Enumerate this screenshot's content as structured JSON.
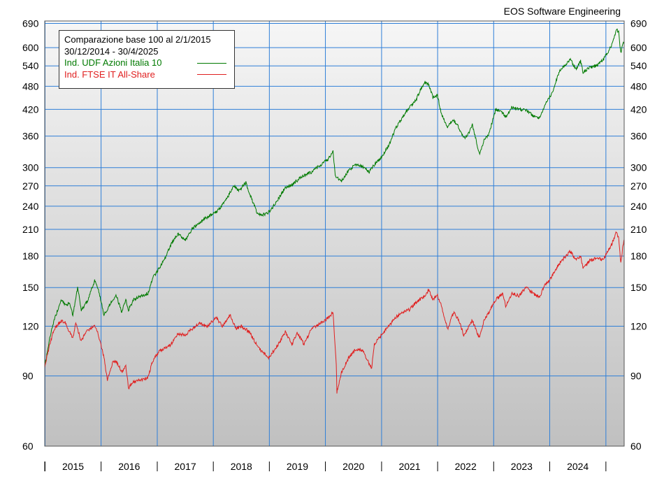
{
  "credit": "EOS Software Engineering",
  "chart_data": {
    "type": "line",
    "title": "Comparazione base 100 al 2/1/2015",
    "subtitle": "30/12/2014 - 30/4/2025",
    "y_scale": "log",
    "ylim": [
      60,
      700
    ],
    "xlim": [
      "2014-12-30",
      "2025-04-30"
    ],
    "y_ticks": [
      60,
      90,
      120,
      150,
      180,
      210,
      240,
      270,
      300,
      360,
      420,
      480,
      540,
      600,
      690
    ],
    "x_tick_labels": [
      "2015",
      "2016",
      "2017",
      "2018",
      "2019",
      "2020",
      "2021",
      "2022",
      "2023",
      "2024"
    ],
    "grid": true,
    "legend_position": "top-left",
    "colors": {
      "background_top": "#f6f6f6",
      "background_bottom": "#c0c0c0",
      "grid": "#2f7fd8"
    },
    "series": [
      {
        "name": "Ind. UDF Azioni Italia 10",
        "color": "#007a00",
        "points": [
          [
            "2014-12-30",
            95
          ],
          [
            "2015-02-01",
            112
          ],
          [
            "2015-03-01",
            124
          ],
          [
            "2015-04-15",
            140
          ],
          [
            "2015-05-15",
            135
          ],
          [
            "2015-06-10",
            138
          ],
          [
            "2015-07-01",
            128
          ],
          [
            "2015-08-01",
            150
          ],
          [
            "2015-08-25",
            132
          ],
          [
            "2015-10-01",
            138
          ],
          [
            "2015-11-20",
            156
          ],
          [
            "2015-12-15",
            148
          ],
          [
            "2016-01-20",
            128
          ],
          [
            "2016-02-15",
            133
          ],
          [
            "2016-03-15",
            140
          ],
          [
            "2016-04-10",
            143
          ],
          [
            "2016-05-15",
            130
          ],
          [
            "2016-06-10",
            140
          ],
          [
            "2016-06-28",
            132
          ],
          [
            "2016-08-01",
            140
          ],
          [
            "2016-09-15",
            143
          ],
          [
            "2016-11-01",
            145
          ],
          [
            "2016-12-01",
            158
          ],
          [
            "2017-01-15",
            168
          ],
          [
            "2017-03-01",
            180
          ],
          [
            "2017-04-01",
            193
          ],
          [
            "2017-05-15",
            205
          ],
          [
            "2017-07-01",
            197
          ],
          [
            "2017-08-15",
            210
          ],
          [
            "2017-10-01",
            218
          ],
          [
            "2017-11-20",
            225
          ],
          [
            "2018-01-20",
            232
          ],
          [
            "2018-03-15",
            245
          ],
          [
            "2018-05-15",
            270
          ],
          [
            "2018-06-15",
            262
          ],
          [
            "2018-08-01",
            275
          ],
          [
            "2018-08-25",
            258
          ],
          [
            "2018-10-20",
            228
          ],
          [
            "2018-12-20",
            230
          ],
          [
            "2019-02-15",
            245
          ],
          [
            "2019-04-15",
            268
          ],
          [
            "2019-06-01",
            272
          ],
          [
            "2019-08-01",
            285
          ],
          [
            "2019-10-01",
            292
          ],
          [
            "2019-12-01",
            305
          ],
          [
            "2020-01-20",
            315
          ],
          [
            "2020-02-20",
            330
          ],
          [
            "2020-03-05",
            285
          ],
          [
            "2020-04-15",
            278
          ],
          [
            "2020-06-01",
            295
          ],
          [
            "2020-07-15",
            305
          ],
          [
            "2020-09-01",
            302
          ],
          [
            "2020-10-10",
            292
          ],
          [
            "2020-11-15",
            305
          ],
          [
            "2020-12-31",
            318
          ],
          [
            "2021-02-15",
            340
          ],
          [
            "2021-04-01",
            375
          ],
          [
            "2021-05-15",
            400
          ],
          [
            "2021-07-01",
            425
          ],
          [
            "2021-08-15",
            445
          ],
          [
            "2021-09-10",
            470
          ],
          [
            "2021-10-10",
            490
          ],
          [
            "2021-11-05",
            485
          ],
          [
            "2021-12-01",
            450
          ],
          [
            "2021-12-31",
            455
          ],
          [
            "2022-01-25",
            410
          ],
          [
            "2022-03-07",
            380
          ],
          [
            "2022-04-15",
            395
          ],
          [
            "2022-05-20",
            378
          ],
          [
            "2022-06-20",
            355
          ],
          [
            "2022-07-15",
            360
          ],
          [
            "2022-08-15",
            385
          ],
          [
            "2022-09-29",
            325
          ],
          [
            "2022-10-30",
            350
          ],
          [
            "2022-12-01",
            365
          ],
          [
            "2023-01-15",
            420
          ],
          [
            "2023-03-01",
            412
          ],
          [
            "2023-03-20",
            402
          ],
          [
            "2023-05-01",
            425
          ],
          [
            "2023-06-15",
            420
          ],
          [
            "2023-08-01",
            418
          ],
          [
            "2023-09-15",
            405
          ],
          [
            "2023-10-27",
            400
          ],
          [
            "2023-12-01",
            430
          ],
          [
            "2024-01-15",
            460
          ],
          [
            "2024-03-01",
            520
          ],
          [
            "2024-04-15",
            545
          ],
          [
            "2024-05-15",
            560
          ],
          [
            "2024-06-20",
            530
          ],
          [
            "2024-07-20",
            555
          ],
          [
            "2024-08-05",
            520
          ],
          [
            "2024-09-15",
            535
          ],
          [
            "2024-11-01",
            540
          ],
          [
            "2024-12-15",
            560
          ],
          [
            "2025-01-31",
            600
          ],
          [
            "2025-02-25",
            640
          ],
          [
            "2025-03-10",
            668
          ],
          [
            "2025-03-25",
            655
          ],
          [
            "2025-04-08",
            580
          ],
          [
            "2025-04-20",
            612
          ],
          [
            "2025-04-30",
            622
          ]
        ]
      },
      {
        "name": "Ind. FTSE IT All-Share",
        "color": "#e02020",
        "points": [
          [
            "2014-12-30",
            95
          ],
          [
            "2015-02-01",
            108
          ],
          [
            "2015-03-01",
            118
          ],
          [
            "2015-04-15",
            124
          ],
          [
            "2015-05-15",
            122
          ],
          [
            "2015-06-10",
            116
          ],
          [
            "2015-07-01",
            112
          ],
          [
            "2015-07-20",
            122
          ],
          [
            "2015-08-25",
            110
          ],
          [
            "2015-10-01",
            117
          ],
          [
            "2015-11-20",
            120
          ],
          [
            "2015-12-15",
            114
          ],
          [
            "2016-01-20",
            100
          ],
          [
            "2016-02-11",
            88
          ],
          [
            "2016-03-15",
            97
          ],
          [
            "2016-04-10",
            98
          ],
          [
            "2016-05-15",
            92
          ],
          [
            "2016-06-10",
            95
          ],
          [
            "2016-06-28",
            84
          ],
          [
            "2016-08-01",
            87
          ],
          [
            "2016-09-15",
            88
          ],
          [
            "2016-11-01",
            89
          ],
          [
            "2016-12-01",
            98
          ],
          [
            "2017-01-15",
            104
          ],
          [
            "2017-03-01",
            106
          ],
          [
            "2017-04-01",
            108
          ],
          [
            "2017-05-15",
            115
          ],
          [
            "2017-07-01",
            114
          ],
          [
            "2017-08-15",
            118
          ],
          [
            "2017-10-01",
            122
          ],
          [
            "2017-11-20",
            120
          ],
          [
            "2018-01-20",
            126
          ],
          [
            "2018-03-01",
            120
          ],
          [
            "2018-04-20",
            128
          ],
          [
            "2018-05-29",
            118
          ],
          [
            "2018-07-01",
            120
          ],
          [
            "2018-08-25",
            116
          ],
          [
            "2018-10-20",
            106
          ],
          [
            "2018-12-27",
            100
          ],
          [
            "2019-02-15",
            106
          ],
          [
            "2019-04-15",
            116
          ],
          [
            "2019-05-30",
            108
          ],
          [
            "2019-07-01",
            116
          ],
          [
            "2019-08-15",
            108
          ],
          [
            "2019-10-01",
            118
          ],
          [
            "2019-12-01",
            122
          ],
          [
            "2020-01-20",
            126
          ],
          [
            "2020-02-20",
            130
          ],
          [
            "2020-03-12",
            96
          ],
          [
            "2020-03-16",
            82
          ],
          [
            "2020-04-15",
            92
          ],
          [
            "2020-06-01",
            100
          ],
          [
            "2020-07-15",
            105
          ],
          [
            "2020-09-01",
            104
          ],
          [
            "2020-10-28",
            94
          ],
          [
            "2020-11-15",
            108
          ],
          [
            "2020-12-31",
            114
          ],
          [
            "2021-02-15",
            120
          ],
          [
            "2021-04-01",
            126
          ],
          [
            "2021-05-15",
            130
          ],
          [
            "2021-07-01",
            132
          ],
          [
            "2021-08-15",
            138
          ],
          [
            "2021-09-10",
            140
          ],
          [
            "2021-10-10",
            143
          ],
          [
            "2021-11-05",
            148
          ],
          [
            "2021-12-01",
            140
          ],
          [
            "2021-12-31",
            143
          ],
          [
            "2022-01-25",
            135
          ],
          [
            "2022-03-07",
            118
          ],
          [
            "2022-04-15",
            130
          ],
          [
            "2022-05-20",
            124
          ],
          [
            "2022-06-20",
            114
          ],
          [
            "2022-07-15",
            118
          ],
          [
            "2022-08-15",
            124
          ],
          [
            "2022-09-29",
            112
          ],
          [
            "2022-10-30",
            124
          ],
          [
            "2022-12-01",
            130
          ],
          [
            "2023-01-15",
            140
          ],
          [
            "2023-03-01",
            145
          ],
          [
            "2023-03-20",
            135
          ],
          [
            "2023-05-01",
            145
          ],
          [
            "2023-06-15",
            143
          ],
          [
            "2023-08-01",
            150
          ],
          [
            "2023-09-15",
            145
          ],
          [
            "2023-10-27",
            142
          ],
          [
            "2023-12-01",
            152
          ],
          [
            "2024-01-15",
            160
          ],
          [
            "2024-03-01",
            172
          ],
          [
            "2024-04-15",
            180
          ],
          [
            "2024-05-15",
            185
          ],
          [
            "2024-06-20",
            176
          ],
          [
            "2024-07-20",
            180
          ],
          [
            "2024-08-05",
            168
          ],
          [
            "2024-09-15",
            175
          ],
          [
            "2024-11-01",
            178
          ],
          [
            "2024-12-15",
            176
          ],
          [
            "2025-01-31",
            190
          ],
          [
            "2025-02-25",
            200
          ],
          [
            "2025-03-10",
            207
          ],
          [
            "2025-03-25",
            200
          ],
          [
            "2025-04-08",
            172
          ],
          [
            "2025-04-20",
            188
          ],
          [
            "2025-04-30",
            198
          ]
        ]
      }
    ]
  }
}
